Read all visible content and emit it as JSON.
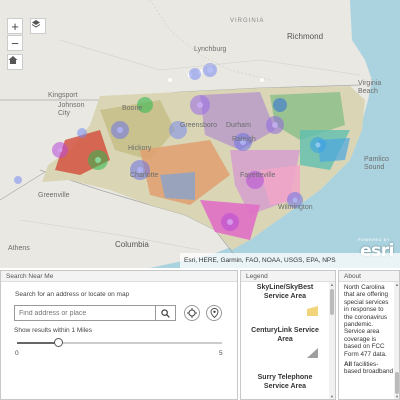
{
  "map": {
    "zoom_in_label": "+",
    "zoom_out_label": "−",
    "zoom_in_icon": "plus-icon",
    "zoom_out_icon": "minus-icon",
    "layers_icon": "layers-icon",
    "home_icon": "home-icon",
    "places": {
      "virginia": "VIRGINIA",
      "richmond": "Richmond",
      "lynchburg": "Lynchburg",
      "kingsport": "Kingsport",
      "johnson_city": "Johnson\nCity",
      "virginia_beach": "Virginia\nBeach",
      "greenville": "Greenville",
      "columbia": "Columbia",
      "athens": "Athens",
      "greensboro": "Greensboro",
      "raleigh": "Raleigh",
      "charlotte": "Charlotte",
      "durham": "Durham",
      "wilmington": "Wilmington",
      "fayetteville": "Fayetteville",
      "pamlico": "Pamlico\nSound",
      "boone": "Boone",
      "hickory": "Hickory"
    },
    "attribution": "Esri, HERE, Garmin, FAO, NOAA, USGS, EPA, NPS",
    "powered_by": "POWERED BY",
    "esri_logo": "esri"
  },
  "search_panel": {
    "title": "Search Near Me",
    "hint": "Search for an address or locate on map",
    "placeholder": "Find address or place",
    "search_icon": "search-icon",
    "locate_icon": "crosshair-icon",
    "pin_icon": "map-pin-icon",
    "radius_label": "Show results within 1 Miles",
    "slider_min": "0",
    "slider_max": "5",
    "slider_value": 1
  },
  "legend_panel": {
    "title": "Legend",
    "items": [
      {
        "label": "SkyLine/SkyBest\nService Area",
        "color": "#f2d57a"
      },
      {
        "label": "CenturyLink Service\nArea",
        "color": "#9e9e9e"
      },
      {
        "label": "Surry Telephone\nService Area",
        "color": "#c8c8c8"
      }
    ]
  },
  "about_panel": {
    "title": "About",
    "text1": "North Carolina that are offering special services in response to the coronavirus pandemic. Service area coverage is based on FCC Form 477 data.",
    "bold": "All",
    "text2": " facilities-based broadband"
  },
  "colors": {
    "water": "#aad3df",
    "land": "#e9e8e3",
    "state_border": "#9b9b9b",
    "accent": "#3a78c2"
  }
}
